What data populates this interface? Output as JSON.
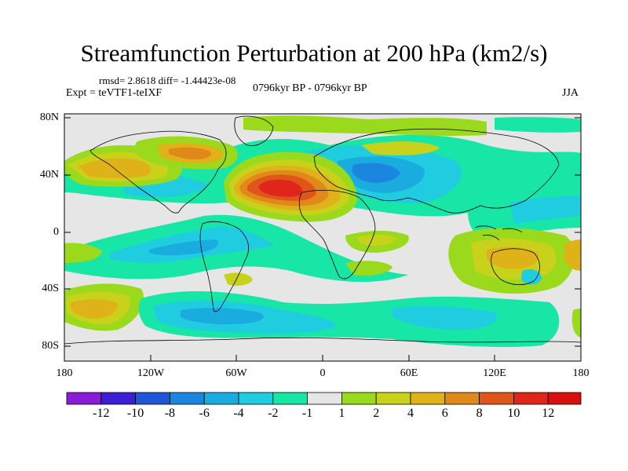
{
  "title": "Streamfunction Perturbation at 200 hPa (km2/s)",
  "stats": "rmsd= 2.8618 diff= -1.44423e-08",
  "experiment": "Expt = teVTF1-teIXF",
  "period": "0796kyr BP - 0796kyr BP",
  "season": "JJA",
  "lat_ticks": [
    "80N",
    "40N",
    "0",
    "40S",
    "80S"
  ],
  "lon_ticks": [
    "180",
    "120W",
    "60W",
    "0",
    "60E",
    "120E",
    "180"
  ],
  "colorbar": {
    "labels": [
      "-12",
      "-10",
      "-8",
      "-6",
      "-4",
      "-2",
      "-1",
      "1",
      "2",
      "4",
      "6",
      "8",
      "10",
      "12"
    ],
    "colors": [
      "#8a1bd9",
      "#3a1fd6",
      "#1f55d9",
      "#1b86e0",
      "#1aacdf",
      "#20cde0",
      "#17e6a6",
      "#e6e6e6",
      "#9ad91c",
      "#c8d21a",
      "#e0b21a",
      "#e0881a",
      "#e0561a",
      "#e0261a",
      "#d90f0f"
    ]
  },
  "map": {
    "projection": "cylindrical equidistant",
    "lat_range": [
      -90,
      90
    ],
    "lon_range": [
      -180,
      180
    ],
    "field": "streamfunction perturbation",
    "units": "km2/s",
    "features": [
      {
        "name": "north-atlantic-high",
        "lon": -25,
        "lat": 32,
        "value": 10
      },
      {
        "name": "middle-east-low",
        "lon": 45,
        "lat": 42,
        "value": -6
      },
      {
        "name": "north-pacific-high",
        "lon": -145,
        "lat": 40,
        "value": 4
      },
      {
        "name": "north-america-high",
        "lon": -80,
        "lat": 50,
        "value": 4
      },
      {
        "name": "tropical-atlantic-low",
        "lon": -50,
        "lat": -10,
        "value": -3
      },
      {
        "name": "australia-high",
        "lon": 130,
        "lat": -20,
        "value": 4
      },
      {
        "name": "indian-ocean-high",
        "lon": 60,
        "lat": -10,
        "value": 2
      },
      {
        "name": "south-pacific-high",
        "lon": -150,
        "lat": -35,
        "value": 4
      },
      {
        "name": "southern-ocean-low",
        "lon": -30,
        "lat": -50,
        "value": -4
      }
    ]
  }
}
